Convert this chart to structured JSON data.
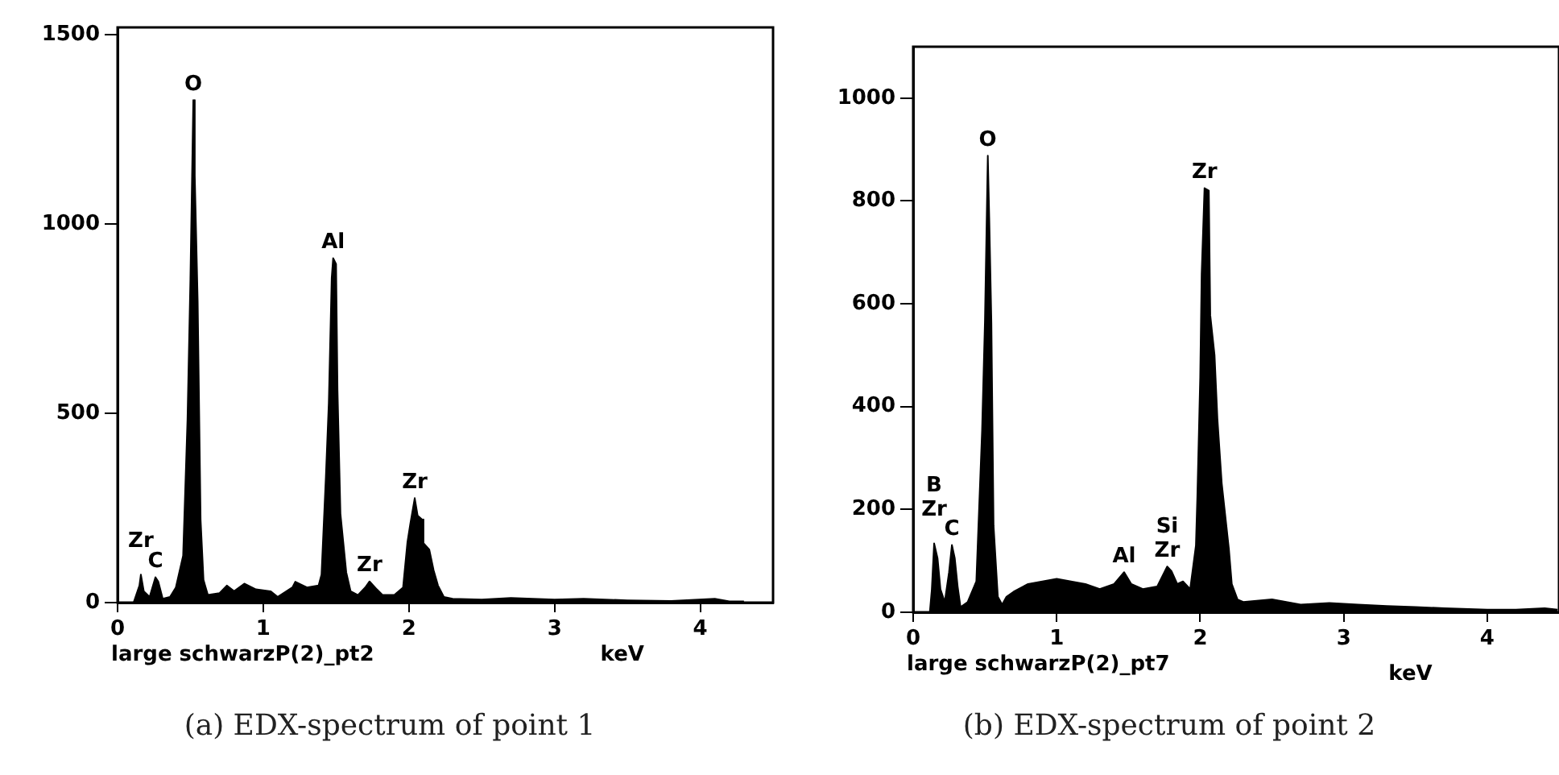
{
  "chart_data": [
    {
      "type": "area",
      "title": "(a) EDX-spectrum of point 1",
      "xlabel": "keV",
      "xlim": [
        0,
        4.5
      ],
      "xticks": [
        0,
        1,
        2,
        3,
        4
      ],
      "ylim": [
        0,
        1520
      ],
      "yticks": [
        0,
        500,
        1000,
        1500
      ],
      "grid": false,
      "legend": false,
      "x": [
        0.11,
        0.15,
        0.16,
        0.18,
        0.22,
        0.26,
        0.28,
        0.31,
        0.36,
        0.4,
        0.45,
        0.48,
        0.5,
        0.52,
        0.53,
        0.55,
        0.57,
        0.59,
        0.62,
        0.7,
        0.75,
        0.8,
        0.87,
        0.95,
        1.05,
        1.1,
        1.2,
        1.22,
        1.3,
        1.38,
        1.4,
        1.43,
        1.45,
        1.47,
        1.48,
        1.5,
        1.51,
        1.53,
        1.57,
        1.6,
        1.65,
        1.7,
        1.73,
        1.78,
        1.82,
        1.9,
        1.96,
        1.99,
        2.01,
        2.04,
        2.06,
        2.09,
        2.1,
        2.14,
        2.17,
        2.2,
        2.24,
        2.3,
        2.5,
        2.7,
        3.0,
        3.2,
        3.5,
        3.8,
        4.1,
        4.2,
        4.3
      ],
      "series": [
        {
          "color": "#000000",
          "values": [
            0,
            45,
            74,
            30,
            15,
            67,
            55,
            10,
            15,
            40,
            124,
            483,
            855,
            1328,
            1128,
            796,
            219,
            60,
            20,
            25,
            45,
            30,
            50,
            35,
            30,
            15,
            40,
            55,
            40,
            45,
            74,
            333,
            527,
            858,
            910,
            895,
            561,
            235,
            80,
            30,
            20,
            40,
            56,
            35,
            20,
            20,
            40,
            160,
            209,
            276,
            230,
            220,
            157,
            140,
            85,
            45,
            15,
            10,
            8,
            12,
            8,
            10,
            6,
            4,
            10,
            3,
            3
          ]
        }
      ],
      "annotations": [
        {
          "text": "Zr",
          "x": 0.16,
          "y": 74
        },
        {
          "text": "C",
          "x": 0.26,
          "y": 67
        },
        {
          "text": "O",
          "x": 0.52,
          "y": 1328
        },
        {
          "text": "Al",
          "x": 1.48,
          "y": 910
        },
        {
          "text": "Zr",
          "x": 1.73,
          "y": 56
        },
        {
          "text": "Zr",
          "x": 2.04,
          "y": 276
        },
        "large schwarzP(2)_pt2"
      ]
    },
    {
      "type": "area",
      "title": "(b) EDX-spectrum of point 2",
      "xlabel": "keV",
      "xlim": [
        0,
        4.5
      ],
      "xticks": [
        0,
        1,
        2,
        3,
        4
      ],
      "ylim": [
        0,
        1100
      ],
      "yticks": [
        0,
        200,
        400,
        600,
        800,
        1000
      ],
      "grid": false,
      "legend": false,
      "x": [
        0.116,
        0.13,
        0.146,
        0.17,
        0.19,
        0.22,
        0.25,
        0.27,
        0.29,
        0.31,
        0.33,
        0.38,
        0.44,
        0.48,
        0.5,
        0.52,
        0.53,
        0.545,
        0.56,
        0.59,
        0.62,
        0.65,
        0.7,
        0.8,
        0.9,
        1.0,
        1.1,
        1.2,
        1.3,
        1.4,
        1.47,
        1.52,
        1.6,
        1.7,
        1.77,
        1.8,
        1.84,
        1.88,
        1.93,
        1.97,
        1.98,
        2.0,
        2.01,
        2.03,
        2.06,
        2.07,
        2.1,
        2.12,
        2.15,
        2.2,
        2.22,
        2.26,
        2.3,
        2.5,
        2.7,
        2.9,
        3.1,
        3.3,
        3.5,
        3.7,
        4.0,
        4.2,
        4.4,
        4.49
      ],
      "series": [
        {
          "color": "#000000",
          "values": [
            0,
            45,
            134,
            105,
            45,
            20,
            78,
            131,
            105,
            50,
            10,
            20,
            60,
            353,
            566,
            888,
            768,
            563,
            169,
            30,
            15,
            30,
            40,
            55,
            60,
            65,
            60,
            55,
            45,
            55,
            78,
            55,
            45,
            50,
            89,
            80,
            55,
            60,
            45,
            130,
            225,
            457,
            658,
            825,
            820,
            578,
            500,
            376,
            251,
            123,
            55,
            25,
            20,
            25,
            15,
            18,
            15,
            12,
            10,
            8,
            5,
            5,
            8,
            5
          ]
        }
      ],
      "annotations": [
        {
          "text": "B",
          "x": 0.146,
          "y": 134
        },
        {
          "text": "Zr",
          "x": 0.146,
          "y": 134
        },
        {
          "text": "C",
          "x": 0.27,
          "y": 131
        },
        {
          "text": "O",
          "x": 0.52,
          "y": 888
        },
        {
          "text": "Al",
          "x": 1.47,
          "y": 78
        },
        {
          "text": "Si",
          "x": 1.77,
          "y": 89
        },
        {
          "text": "Zr",
          "x": 1.77,
          "y": 89
        },
        {
          "text": "Zr",
          "x": 2.03,
          "y": 825
        },
        "large schwarzP(2)_pt7"
      ]
    }
  ]
}
